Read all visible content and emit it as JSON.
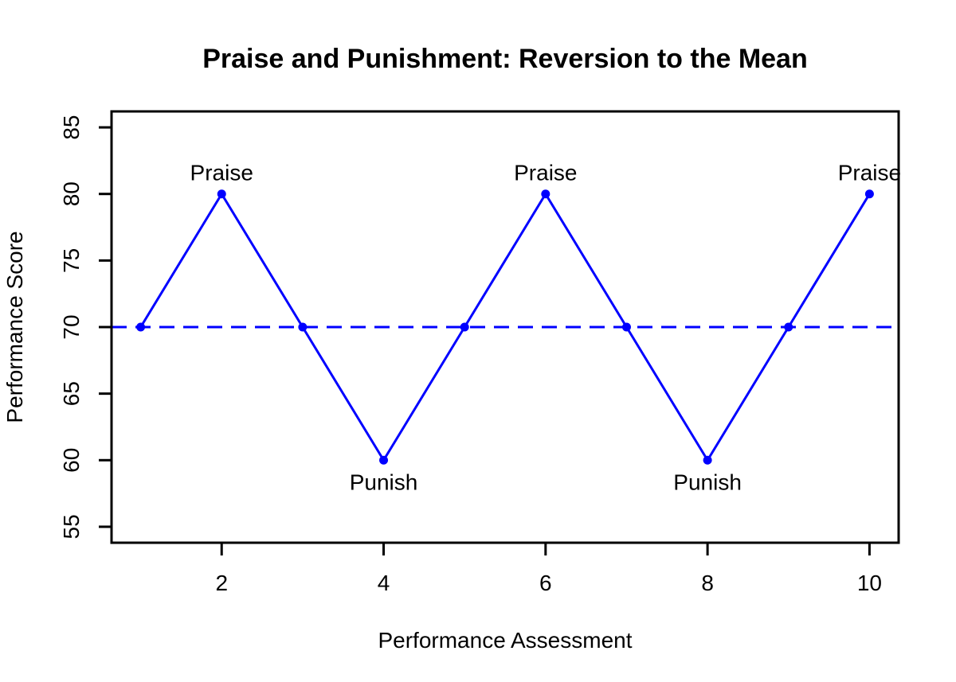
{
  "chart_data": {
    "type": "line",
    "title": "Praise and Punishment: Reversion to the Mean",
    "xlabel": "Performance Assessment",
    "ylabel": "Performance Score",
    "x": [
      1,
      2,
      3,
      4,
      5,
      6,
      7,
      8,
      9,
      10
    ],
    "y": [
      70,
      80,
      70,
      60,
      70,
      80,
      70,
      60,
      70,
      80
    ],
    "line_color": "#0000FF",
    "line_style": "solid",
    "marker": "filled-circle",
    "marker_color": "#0000FF",
    "mean_line": {
      "y": 70,
      "color": "#0000FF",
      "style": "dashed"
    },
    "x_ticks": [
      2,
      4,
      6,
      8,
      10
    ],
    "y_ticks": [
      55,
      60,
      65,
      70,
      75,
      80,
      85
    ],
    "xlim": [
      1,
      10
    ],
    "ylim": [
      55,
      85
    ],
    "axis_expansion": 0.04,
    "grid": false,
    "legend": "none",
    "axis_color": "#000000",
    "background_color": "#FFFFFF",
    "annotations": [
      {
        "text": "Praise",
        "x": 2,
        "y": 80,
        "color": "#00FF00",
        "position": "above"
      },
      {
        "text": "Praise",
        "x": 6,
        "y": 80,
        "color": "#00FF00",
        "position": "above"
      },
      {
        "text": "Praise",
        "x": 10,
        "y": 80,
        "color": "#00FF00",
        "position": "above"
      },
      {
        "text": "Punish",
        "x": 4,
        "y": 60,
        "color": "#FF0000",
        "position": "below"
      },
      {
        "text": "Punish",
        "x": 8,
        "y": 60,
        "color": "#FF0000",
        "position": "below"
      }
    ]
  }
}
